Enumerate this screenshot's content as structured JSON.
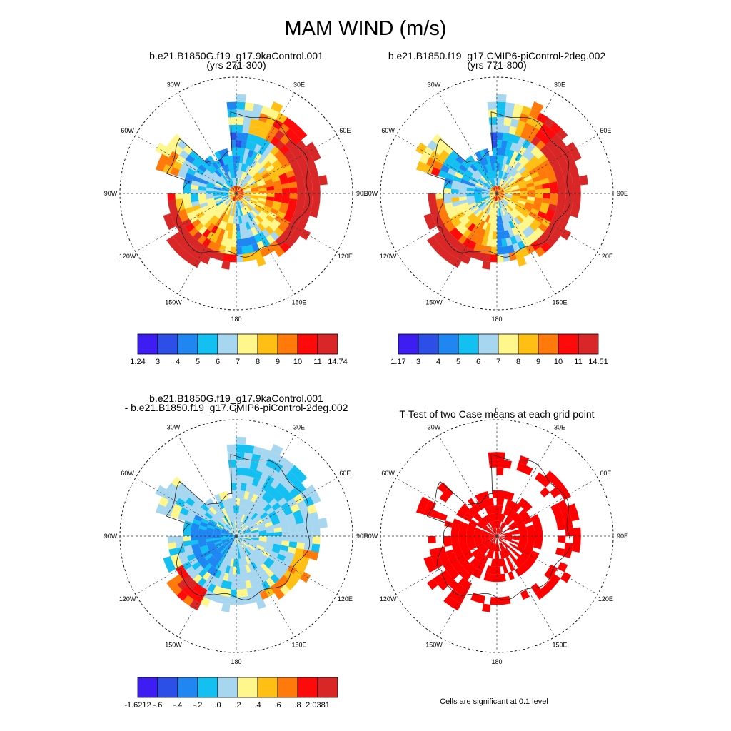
{
  "title": "MAM WIND (m/s)",
  "lon_labels": [
    "0",
    "30E",
    "60E",
    "90E",
    "120E",
    "150E",
    "180",
    "150W",
    "120W",
    "90W",
    "60W",
    "30W"
  ],
  "colors": {
    "wind": [
      "#3e1df2",
      "#2c4fe8",
      "#1f86f2",
      "#14bff2",
      "#a6d6f0",
      "#fff78c",
      "#ffbf14",
      "#ff7a0a",
      "#ff0a0a",
      "#d92626"
    ],
    "diff": [
      "#3e1df2",
      "#2c4fe8",
      "#1f86f2",
      "#14bff2",
      "#a6d6f0",
      "#fff78c",
      "#ffbf14",
      "#ff7a0a",
      "#ff0a0a",
      "#d92626"
    ],
    "signif": "#ff0000"
  },
  "panels": [
    {
      "id": "case1",
      "title_line1": "b.e21.B1850G.f19_g17.9kaControl.001",
      "title_line2": "(yrs 271-300)",
      "colorbar_labels": [
        "1.24",
        "3",
        "4",
        "5",
        "6",
        "7",
        "8",
        "9",
        "10",
        "11",
        "14.74"
      ]
    },
    {
      "id": "case2",
      "title_line1": "b.e21.B1850.f19_g17.CMIP6-piControl-2deg.002",
      "title_line2": "(yrs 771-800)",
      "colorbar_labels": [
        "1.17",
        "3",
        "4",
        "5",
        "6",
        "7",
        "8",
        "9",
        "10",
        "11",
        "14.51"
      ]
    },
    {
      "id": "diff",
      "title_line1": "b.e21.B1850G.f19_g17.9kaControl.001",
      "title_line2": "- b.e21.B1850.f19_g17.CMIP6-piControl-2deg.002",
      "colorbar_labels": [
        "-1.6212",
        "-.6",
        "-.4",
        "-.2",
        ".0",
        ".2",
        ".4",
        ".6",
        ".8",
        "2.0381"
      ]
    },
    {
      "id": "ttest",
      "title_line1": "T-Test of two Case means at each grid point",
      "title_line2": "",
      "note": "Cells are significant at 0.1 level"
    }
  ]
}
